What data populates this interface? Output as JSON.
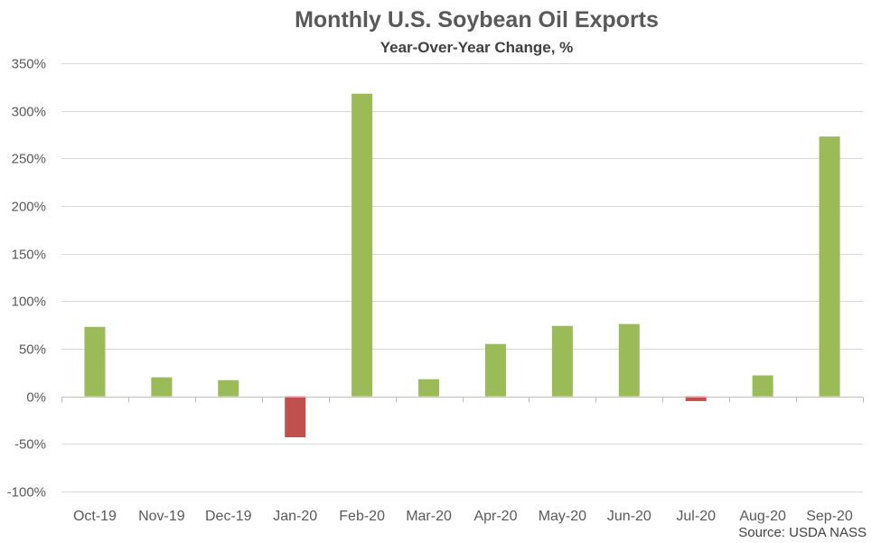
{
  "title": "Monthly U.S. Soybean Oil Exports",
  "subtitle": "Year-Over-Year Change, %",
  "source": "Source: USDA NASS",
  "colors": {
    "positive": "#9BBB59",
    "negative": "#C0504D",
    "grid": "#D9D9D9",
    "axis": "#BFBFBF",
    "text": "#595959"
  },
  "chart_data": {
    "type": "bar",
    "title": "Monthly U.S. Soybean Oil Exports",
    "subtitle": "Year-Over-Year Change, %",
    "xlabel": "",
    "ylabel": "",
    "ylim": [
      -100,
      350
    ],
    "yticks": [
      -100,
      -50,
      0,
      50,
      100,
      150,
      200,
      250,
      300,
      350
    ],
    "ytick_labels": [
      "-100%",
      "-50%",
      "0%",
      "50%",
      "100%",
      "150%",
      "200%",
      "250%",
      "300%",
      "350%"
    ],
    "grid": true,
    "legend": "none",
    "categories": [
      "Oct-19",
      "Nov-19",
      "Dec-19",
      "Jan-20",
      "Feb-20",
      "Mar-20",
      "Apr-20",
      "May-20",
      "Jun-20",
      "Jul-20",
      "Aug-20",
      "Sep-20"
    ],
    "values": [
      73,
      20,
      17,
      -43,
      318,
      18,
      55,
      74,
      76,
      -5,
      22,
      273
    ]
  }
}
